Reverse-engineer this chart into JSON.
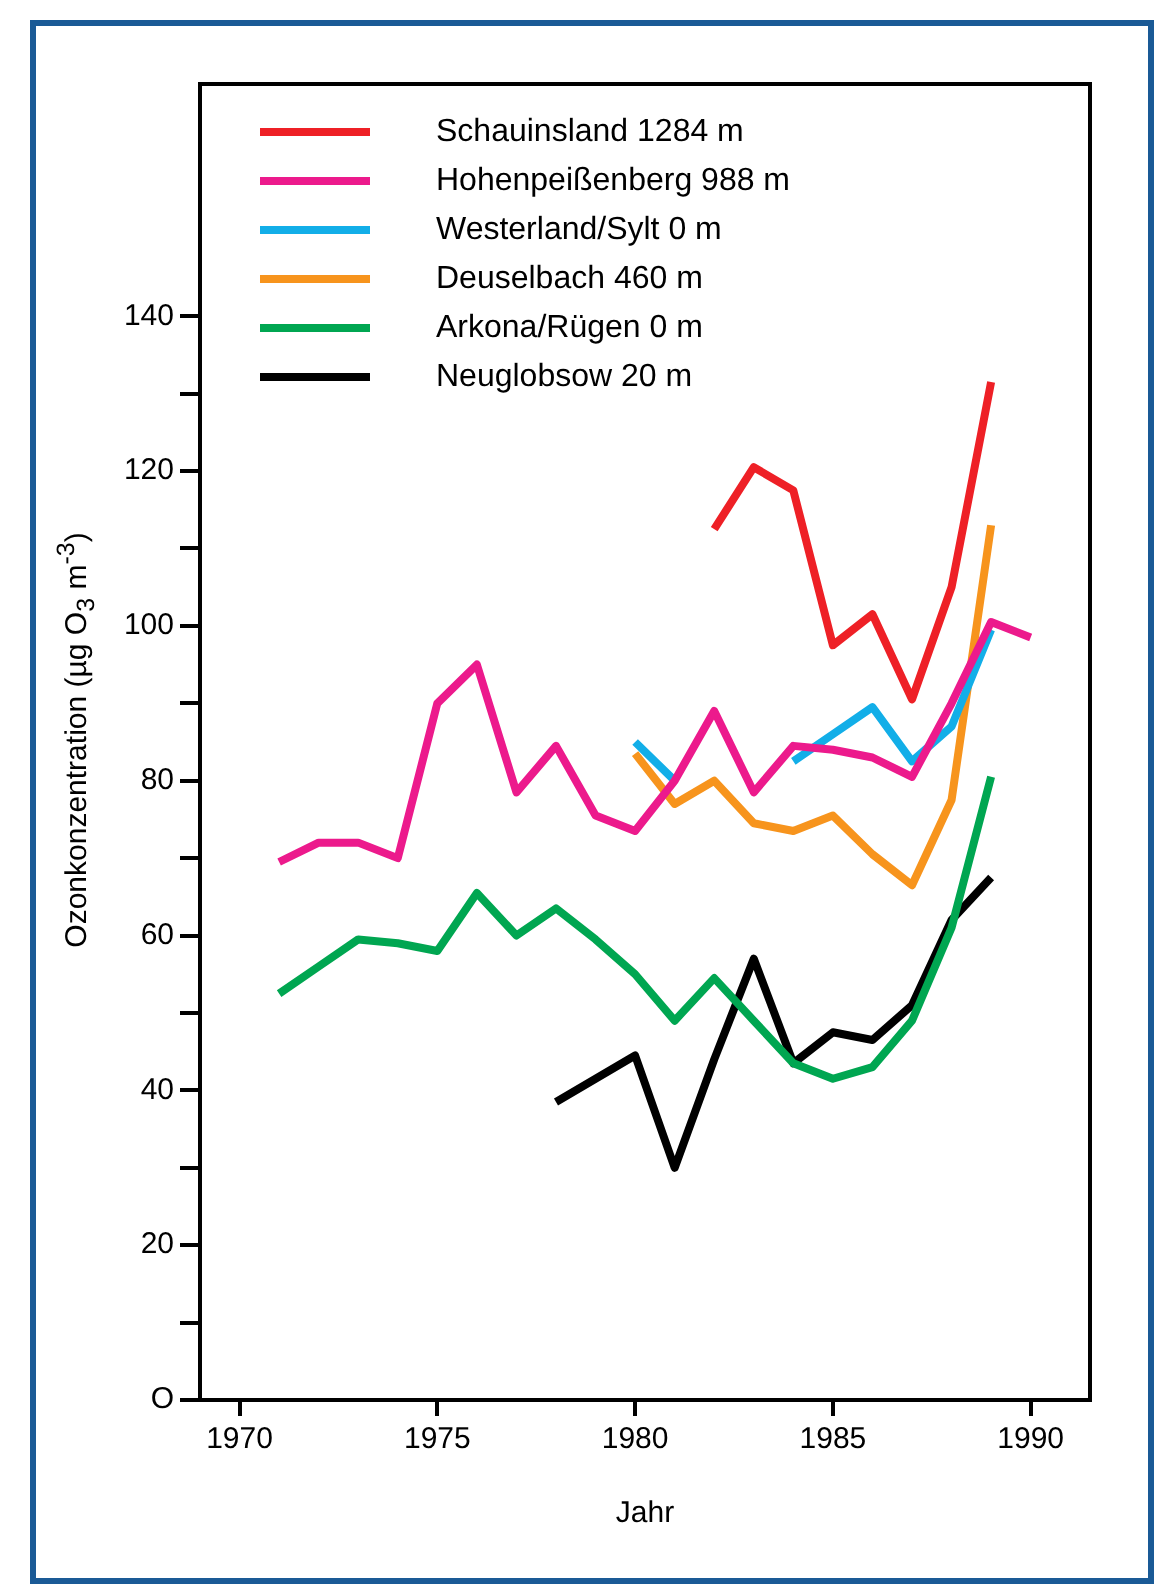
{
  "chart_data": {
    "type": "line",
    "xlabel": "Jahr",
    "ylabel": "Ozonkonzentration (µg O$_{3}$ m$^{-3}$)",
    "x": [
      1971,
      1972,
      1973,
      1974,
      1975,
      1976,
      1977,
      1978,
      1979,
      1980,
      1981,
      1982,
      1983,
      1984,
      1985,
      1986,
      1987,
      1988,
      1989,
      1990
    ],
    "series": [
      {
        "name": "Schauinsland 1284 m",
        "color": "#ee2026",
        "values": [
          null,
          null,
          null,
          null,
          null,
          null,
          null,
          null,
          null,
          null,
          null,
          112.5,
          120.5,
          117.5,
          97.5,
          101.5,
          90.5,
          105,
          131.5,
          null
        ]
      },
      {
        "name": "Hohenpeißenberg 988 m",
        "color": "#ec1a8c",
        "values": [
          69.5,
          72,
          72,
          70,
          90,
          95,
          78.5,
          84.5,
          75.5,
          73.5,
          80,
          89,
          78.5,
          84.5,
          84,
          83,
          80.5,
          90,
          100.5,
          98.5
        ]
      },
      {
        "name": "Westerland/Sylt 0 m",
        "color": "#12aee8",
        "values": [
          null,
          null,
          null,
          null,
          null,
          null,
          null,
          null,
          null,
          85,
          80,
          null,
          null,
          82.5,
          86,
          89.5,
          82.5,
          87,
          99.5,
          null
        ]
      },
      {
        "name": "Deuselbach 460 m",
        "color": "#f7941d",
        "values": [
          null,
          null,
          null,
          null,
          null,
          null,
          null,
          null,
          null,
          83.5,
          77,
          80,
          74.5,
          73.5,
          75.5,
          70.5,
          66.5,
          77.5,
          113,
          null
        ]
      },
      {
        "name": "Arkona/Rügen 0 m",
        "color": "#00a651",
        "values": [
          52.5,
          56,
          59.5,
          59,
          58,
          65.5,
          60,
          63.5,
          59.5,
          55,
          49,
          54.5,
          49,
          43.5,
          41.5,
          43,
          49,
          61,
          80.5,
          null
        ]
      },
      {
        "name": "Neuglobsow 20 m",
        "color": "#000000",
        "values": [
          null,
          null,
          null,
          null,
          null,
          null,
          null,
          38.5,
          41.5,
          44.5,
          30,
          44,
          57,
          43.5,
          47.5,
          46.5,
          51,
          62,
          67.5,
          null
        ]
      }
    ],
    "xlim": [
      1969,
      1991.5
    ],
    "xticks": [
      1970,
      1975,
      1980,
      1985,
      1990
    ],
    "ylim": [
      0,
      170
    ],
    "yticks": [
      {
        "value": 0,
        "label": "O"
      },
      {
        "value": 10,
        "label": null
      },
      20,
      {
        "value": 30,
        "label": null
      },
      40,
      {
        "value": 50,
        "label": null
      },
      60,
      {
        "value": 70,
        "label": null
      },
      80,
      {
        "value": 90,
        "label": null
      },
      100,
      {
        "value": 110,
        "label": null
      },
      120,
      {
        "value": 130,
        "label": null
      },
      140
    ],
    "grid": false,
    "legend": "top left",
    "marker": "none",
    "line_style": "solid"
  }
}
